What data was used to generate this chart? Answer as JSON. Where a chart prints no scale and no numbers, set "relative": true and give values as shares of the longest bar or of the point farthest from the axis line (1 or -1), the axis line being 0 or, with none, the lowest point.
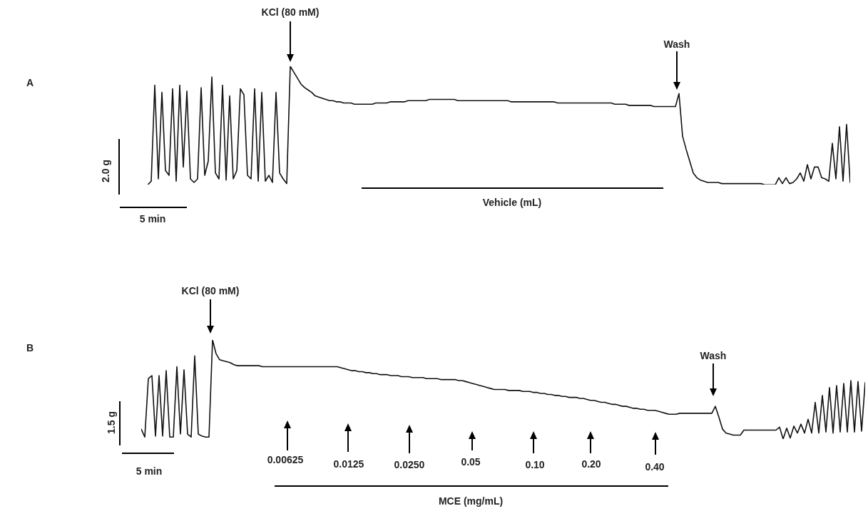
{
  "chart_data": [
    {
      "type": "line",
      "relative": true,
      "color": "#111111",
      "annotations": [
        "KCl (80 mM)",
        "Wash",
        "Vehicle (mL)",
        "2.0 g",
        "5 min",
        "A"
      ],
      "categories": [
        null,
        null,
        null,
        null,
        null,
        null,
        null,
        null,
        null,
        null,
        null,
        null,
        null,
        null,
        null,
        null,
        null,
        null,
        null,
        null,
        null,
        null,
        null,
        null,
        null,
        null,
        null,
        null,
        null,
        null,
        null,
        null,
        null,
        null,
        null,
        null,
        null,
        null,
        null,
        null,
        null,
        null,
        null,
        null,
        null,
        null,
        null,
        null,
        null,
        null,
        null,
        null,
        null,
        null,
        null,
        null,
        null,
        null,
        null,
        null,
        null,
        null,
        null,
        null,
        null,
        null,
        null,
        null,
        null,
        null,
        null,
        null,
        null,
        null,
        null,
        null,
        null,
        null,
        null,
        null,
        null,
        null,
        null,
        null,
        null,
        null,
        null,
        null,
        null,
        null,
        null,
        null,
        null,
        null,
        null,
        null,
        null,
        null,
        null,
        null,
        null,
        null,
        null,
        null,
        null,
        null,
        null,
        null,
        null,
        null,
        null,
        null,
        null,
        null,
        null,
        null,
        null,
        null,
        null,
        null,
        null,
        null,
        null,
        null,
        null,
        null,
        null,
        null,
        null,
        null,
        null,
        null,
        null,
        null,
        null,
        null,
        null,
        null,
        null,
        null,
        null,
        null,
        null,
        null,
        null,
        null,
        null,
        null,
        null,
        null,
        null,
        null,
        null,
        null,
        null,
        null,
        null,
        null,
        null,
        null,
        null,
        null,
        null,
        null,
        null,
        null,
        null,
        null,
        null,
        null,
        null,
        null,
        null,
        null,
        null,
        null,
        null,
        null,
        null,
        null,
        null,
        null,
        null,
        null,
        null,
        null,
        null,
        null,
        null,
        null,
        null,
        null,
        null,
        null,
        null,
        null,
        null,
        null
      ],
      "values": [
        0,
        0.03,
        0.84,
        0.05,
        0.78,
        0.12,
        0.08,
        0.81,
        0.03,
        0.84,
        0.15,
        0.79,
        0.05,
        0.02,
        0.05,
        0.82,
        0.08,
        0.2,
        0.91,
        0.1,
        0.05,
        0.84,
        0.04,
        0.75,
        0.05,
        0.12,
        0.81,
        0.76,
        0.08,
        0.05,
        0.81,
        0.03,
        0.78,
        0.03,
        0.08,
        0.02,
        0.78,
        0.1,
        0.05,
        0.01,
        1,
        0.95,
        0.9,
        0.85,
        0.82,
        0.8,
        0.78,
        0.75,
        0.74,
        0.73,
        0.72,
        0.71,
        0.71,
        0.7,
        0.7,
        0.69,
        0.69,
        0.69,
        0.68,
        0.68,
        0.68,
        0.68,
        0.68,
        0.68,
        0.69,
        0.69,
        0.69,
        0.69,
        0.7,
        0.7,
        0.7,
        0.7,
        0.7,
        0.71,
        0.71,
        0.71,
        0.71,
        0.71,
        0.71,
        0.72,
        0.72,
        0.72,
        0.72,
        0.72,
        0.72,
        0.72,
        0.72,
        0.71,
        0.71,
        0.71,
        0.71,
        0.71,
        0.71,
        0.71,
        0.71,
        0.71,
        0.71,
        0.71,
        0.71,
        0.71,
        0.71,
        0.71,
        0.7,
        0.7,
        0.7,
        0.7,
        0.7,
        0.7,
        0.7,
        0.7,
        0.7,
        0.7,
        0.7,
        0.7,
        0.7,
        0.69,
        0.69,
        0.69,
        0.69,
        0.69,
        0.69,
        0.69,
        0.69,
        0.69,
        0.69,
        0.69,
        0.69,
        0.69,
        0.69,
        0.69,
        0.69,
        0.68,
        0.68,
        0.68,
        0.68,
        0.67,
        0.67,
        0.67,
        0.67,
        0.67,
        0.67,
        0.67,
        0.66,
        0.66,
        0.66,
        0.66,
        0.66,
        0.66,
        0.66,
        0.77,
        0.41,
        0.3,
        0.2,
        0.1,
        0.06,
        0.04,
        0.03,
        0.02,
        0.02,
        0.02,
        0.02,
        0.01,
        0.01,
        0.01,
        0.01,
        0.01,
        0.01,
        0.01,
        0.01,
        0.01,
        0.01,
        0.01,
        0.01,
        0,
        0,
        0,
        0,
        0.06,
        0.01,
        0.06,
        0.01,
        0.02,
        0.05,
        0.1,
        0.03,
        0.17,
        0.05,
        0.15,
        0.15,
        0.06,
        0.05,
        0.03,
        0.35,
        0.05,
        0.49,
        0.03,
        0.51,
        0.02
      ]
    },
    {
      "type": "line",
      "relative": true,
      "color": "#111111",
      "annotations": [
        "KCl (80 mM)",
        "0.00625",
        "0.0125",
        "0.0250",
        "0.05",
        "0.10",
        "0.20",
        "0.40",
        "Wash",
        "MCE (mg/mL)",
        "1.5 g",
        "5 min",
        "B"
      ],
      "categories": [
        null,
        null,
        null,
        null,
        null,
        null,
        null,
        null,
        null,
        null,
        null,
        null,
        null,
        null,
        null,
        null,
        null,
        null,
        null,
        null,
        null,
        null,
        null,
        null,
        null,
        null,
        null,
        null,
        null,
        null,
        null,
        null,
        null,
        null,
        null,
        null,
        null,
        null,
        null,
        null,
        null,
        null,
        null,
        null,
        null,
        null,
        null,
        null,
        null,
        null,
        null,
        null,
        null,
        null,
        null,
        null,
        null,
        null,
        null,
        null,
        null,
        null,
        null,
        null,
        null,
        null,
        null,
        null,
        null,
        null,
        null,
        null,
        null,
        null,
        null,
        null,
        null,
        null,
        null,
        null,
        null,
        null,
        null,
        null,
        null,
        null,
        null,
        null,
        null,
        null,
        null,
        null,
        null,
        null,
        null,
        null,
        null,
        null,
        null,
        null,
        null,
        null,
        null,
        null,
        null,
        null,
        null,
        null,
        null,
        null,
        null,
        null,
        null,
        null,
        null,
        null,
        null,
        null,
        null,
        null,
        null,
        null,
        null,
        null,
        null,
        null,
        null,
        null,
        null,
        null,
        null,
        null,
        null,
        null,
        null,
        null,
        null,
        null,
        null,
        null,
        null,
        null,
        null,
        null,
        null,
        null,
        null,
        null,
        null,
        null,
        null,
        null,
        null,
        null,
        null,
        null,
        null,
        null,
        null,
        null,
        null,
        null,
        null,
        null,
        null,
        null,
        null,
        null,
        null,
        null,
        null,
        null,
        null,
        null,
        null,
        null,
        null,
        null,
        null,
        null,
        null,
        null,
        null,
        null,
        null,
        null,
        null,
        null,
        null,
        null,
        null,
        null,
        null,
        null,
        null,
        null,
        null,
        null,
        null,
        null,
        null,
        null,
        null,
        null
      ],
      "values": [
        0.1,
        0.02,
        0.61,
        0.64,
        0.03,
        0.64,
        0.03,
        0.69,
        0.02,
        0.02,
        0.73,
        0.05,
        0.7,
        0.05,
        0.02,
        0.84,
        0.05,
        0.03,
        0.02,
        0.02,
        1,
        0.86,
        0.8,
        0.79,
        0.78,
        0.77,
        0.75,
        0.74,
        0.74,
        0.74,
        0.74,
        0.74,
        0.74,
        0.74,
        0.73,
        0.73,
        0.73,
        0.73,
        0.73,
        0.73,
        0.73,
        0.73,
        0.73,
        0.73,
        0.73,
        0.73,
        0.73,
        0.73,
        0.73,
        0.73,
        0.73,
        0.73,
        0.73,
        0.73,
        0.73,
        0.73,
        0.72,
        0.71,
        0.7,
        0.69,
        0.69,
        0.68,
        0.68,
        0.67,
        0.67,
        0.66,
        0.66,
        0.65,
        0.65,
        0.65,
        0.64,
        0.64,
        0.64,
        0.63,
        0.63,
        0.63,
        0.62,
        0.62,
        0.62,
        0.62,
        0.61,
        0.61,
        0.61,
        0.61,
        0.6,
        0.6,
        0.6,
        0.6,
        0.6,
        0.59,
        0.59,
        0.58,
        0.57,
        0.56,
        0.55,
        0.54,
        0.53,
        0.52,
        0.51,
        0.5,
        0.5,
        0.5,
        0.5,
        0.49,
        0.49,
        0.49,
        0.49,
        0.48,
        0.48,
        0.48,
        0.47,
        0.47,
        0.46,
        0.46,
        0.45,
        0.45,
        0.44,
        0.44,
        0.43,
        0.43,
        0.42,
        0.42,
        0.42,
        0.41,
        0.41,
        0.4,
        0.39,
        0.39,
        0.38,
        0.37,
        0.37,
        0.36,
        0.35,
        0.35,
        0.34,
        0.33,
        0.33,
        0.32,
        0.31,
        0.31,
        0.3,
        0.3,
        0.29,
        0.29,
        0.29,
        0.28,
        0.27,
        0.26,
        0.25,
        0.25,
        0.25,
        0.26,
        0.26,
        0.26,
        0.26,
        0.26,
        0.26,
        0.26,
        0.26,
        0.26,
        0.26,
        0.33,
        0.22,
        0.1,
        0.06,
        0.05,
        0.04,
        0.04,
        0.04,
        0.09,
        0.09,
        0.09,
        0.09,
        0.09,
        0.09,
        0.09,
        0.09,
        0.09,
        0.09,
        0.12,
        0,
        0.11,
        0.01,
        0.13,
        0.06,
        0.15,
        0.06,
        0.2,
        0.06,
        0.37,
        0.06,
        0.44,
        0.07,
        0.52,
        0.06,
        0.54,
        0.07,
        0.56,
        0.07,
        0.59,
        0.07,
        0.58,
        0.08,
        0.57
      ]
    }
  ]
}
